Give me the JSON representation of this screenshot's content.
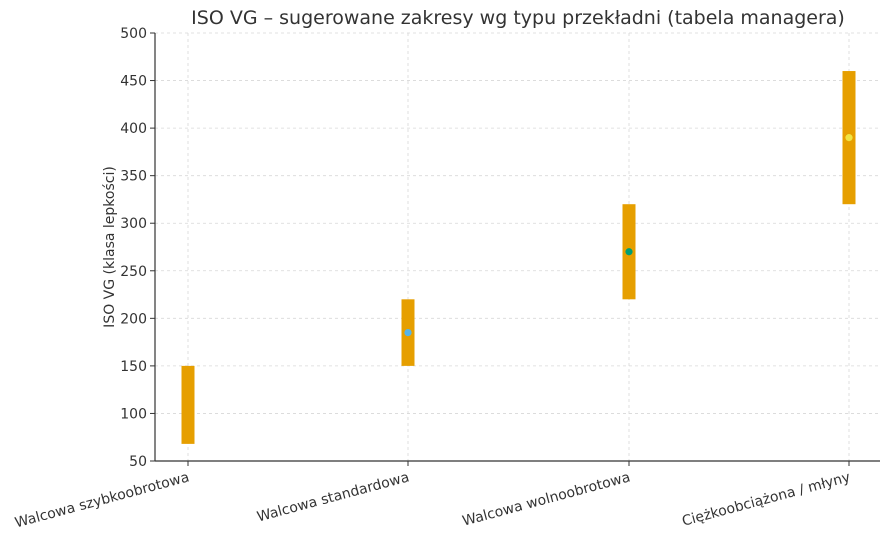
{
  "chart_data": {
    "type": "range-bar",
    "title": "ISO VG – sugerowane zakresy wg typu przekładni (tabela managera)",
    "xlabel": "",
    "ylabel": "ISO VG (klasa lepkości)",
    "ylim": [
      50,
      500
    ],
    "yticks": [
      50,
      100,
      150,
      200,
      250,
      300,
      350,
      400,
      450,
      500
    ],
    "grid": true,
    "categories": [
      "Walcowa szybkoobrotowa",
      "Walcowa standardowa",
      "Walcowa wolnoobrotowa",
      "Ciężkoobciążona / młyny"
    ],
    "ranges": [
      {
        "low": 68,
        "high": 150,
        "marker": null
      },
      {
        "low": 150,
        "high": 220,
        "marker": 185
      },
      {
        "low": 220,
        "high": 320,
        "marker": 270
      },
      {
        "low": 320,
        "high": 460,
        "marker": 390
      }
    ],
    "colors": {
      "bar": "#E69F00",
      "markers": [
        "#E69F00",
        "#56B4E9",
        "#009E73",
        "#F0E442"
      ],
      "grid": "#d8d8d8",
      "axis": "#333333"
    }
  }
}
